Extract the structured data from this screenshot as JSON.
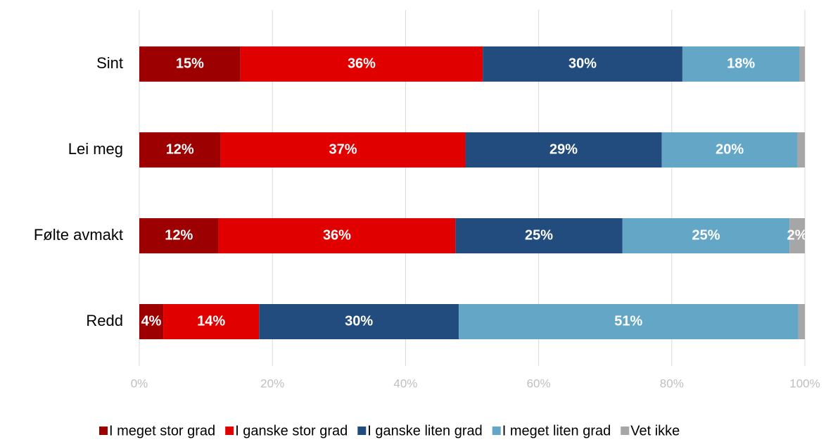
{
  "chart_data": {
    "type": "stacked_bar_horizontal",
    "categories": [
      "Sint",
      "Lei meg",
      "Følte avmakt",
      "Redd"
    ],
    "series": [
      {
        "name": "I meget stor grad",
        "color": "#9c0000",
        "values": [
          15.2,
          12.2,
          11.9,
          3.6
        ],
        "value_labels": [
          "15%",
          "12%",
          "12%",
          "4%"
        ]
      },
      {
        "name": "I ganske stor grad",
        "color": "#e00000",
        "values": [
          36.4,
          36.8,
          35.6,
          14.4
        ],
        "value_labels": [
          "36%",
          "37%",
          "36%",
          "14%"
        ]
      },
      {
        "name": "I ganske liten grad",
        "color": "#224b7e",
        "values": [
          30.0,
          29.5,
          25.1,
          30.0
        ],
        "value_labels": [
          "30%",
          "29%",
          "25%",
          "30%"
        ]
      },
      {
        "name": "I meget liten grad",
        "color": "#63a6c6",
        "values": [
          17.6,
          20.4,
          25.1,
          51.0
        ],
        "value_labels": [
          "18%",
          "20%",
          "25%",
          "51%"
        ]
      },
      {
        "name": "Vet ikke",
        "color": "#a6a6a6",
        "values": [
          0.8,
          1.1,
          2.3,
          1.0
        ],
        "value_labels": [
          null,
          null,
          "2%",
          null
        ]
      }
    ],
    "xlim": [
      0,
      100
    ],
    "xticks": [
      {
        "value": 0,
        "label": "0%"
      },
      {
        "value": 20,
        "label": "20%"
      },
      {
        "value": 40,
        "label": "40%"
      },
      {
        "value": 60,
        "label": "60%"
      },
      {
        "value": 80,
        "label": "80%"
      },
      {
        "value": 100,
        "label": "100%"
      }
    ],
    "grid": true,
    "legend": "bottom"
  }
}
